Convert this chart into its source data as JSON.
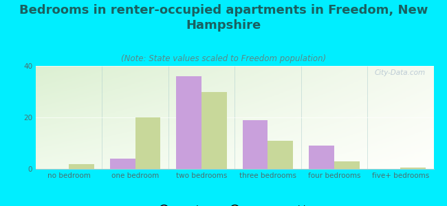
{
  "title": "Bedrooms in renter-occupied apartments in Freedom, New\nHampshire",
  "subtitle": "(Note: State values scaled to Freedom population)",
  "categories": [
    "no bedroom",
    "one bedroom",
    "two bedrooms",
    "three bedrooms",
    "four bedrooms",
    "five+ bedrooms"
  ],
  "freedom_values": [
    0,
    4,
    36,
    19,
    9,
    0
  ],
  "nh_values": [
    2,
    20,
    30,
    11,
    3,
    0.5
  ],
  "freedom_color": "#c9a0dc",
  "nh_color": "#c8d89a",
  "background_color": "#00eeff",
  "ylim": [
    0,
    40
  ],
  "yticks": [
    0,
    20,
    40
  ],
  "bar_width": 0.38,
  "title_fontsize": 13,
  "subtitle_fontsize": 8.5,
  "tick_fontsize": 7.5,
  "legend_fontsize": 9,
  "title_color": "#1a6060",
  "subtitle_color": "#5a8888",
  "tick_color": "#4a7070",
  "watermark": "City-Data.com"
}
